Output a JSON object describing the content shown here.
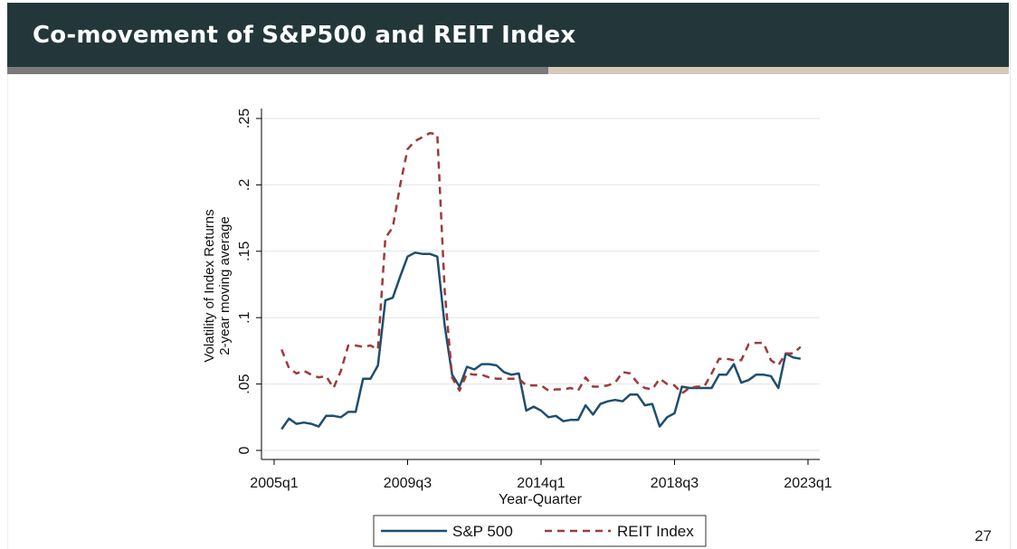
{
  "slide": {
    "title": "Co-movement of S&P500 and REIT Index",
    "page_number": "27",
    "progress_fraction": 0.54
  },
  "colors": {
    "title_bar": "#23373b",
    "progress_fill": "#7a7a7a",
    "progress_track": "#d6c9b5",
    "sp500": "#1f4e6e",
    "reit": "#9e3a3a",
    "grid": "#e4e4e4"
  },
  "chart_data": {
    "type": "line",
    "xlabel": "Year-Quarter",
    "ylabel_line1": "Volatility of Index Returns",
    "ylabel_line2": "2-year moving average",
    "xlim": [
      "2005q1",
      "2023q1"
    ],
    "ylim": [
      0,
      0.25
    ],
    "x_ticks": [
      "2005q1",
      "2009q3",
      "2014q1",
      "2018q3",
      "2023q1"
    ],
    "y_ticks": [
      {
        "value": 0,
        "label": "0"
      },
      {
        "value": 0.05,
        "label": ".05"
      },
      {
        "value": 0.1,
        "label": ".1"
      },
      {
        "value": 0.15,
        "label": ".15"
      },
      {
        "value": 0.2,
        "label": ".2"
      },
      {
        "value": 0.25,
        "label": ".25"
      }
    ],
    "grid": true,
    "legend": {
      "placement": "bottom",
      "entries": [
        "S&P 500",
        "REIT Index"
      ]
    },
    "x": [
      "2005q2",
      "2005q3",
      "2005q4",
      "2006q1",
      "2006q2",
      "2006q3",
      "2006q4",
      "2007q1",
      "2007q2",
      "2007q3",
      "2007q4",
      "2008q1",
      "2008q2",
      "2008q3",
      "2008q4",
      "2009q1",
      "2009q2",
      "2009q3",
      "2009q4",
      "2010q1",
      "2010q2",
      "2010q3",
      "2010q4",
      "2011q1",
      "2011q2",
      "2011q3",
      "2011q4",
      "2012q1",
      "2012q2",
      "2012q3",
      "2012q4",
      "2013q1",
      "2013q2",
      "2013q3",
      "2013q4",
      "2014q1",
      "2014q2",
      "2014q3",
      "2014q4",
      "2015q1",
      "2015q2",
      "2015q3",
      "2015q4",
      "2016q1",
      "2016q2",
      "2016q3",
      "2016q4",
      "2017q1",
      "2017q2",
      "2017q3",
      "2017q4",
      "2018q1",
      "2018q2",
      "2018q3",
      "2018q4",
      "2019q1",
      "2019q2",
      "2019q3",
      "2019q4",
      "2020q1",
      "2020q2",
      "2020q3",
      "2020q4",
      "2021q1",
      "2021q2",
      "2021q3",
      "2021q4",
      "2022q1",
      "2022q2",
      "2022q3",
      "2022q4"
    ],
    "series": [
      {
        "name": "S&P 500",
        "style": "solid",
        "values": [
          0.016,
          0.024,
          0.02,
          0.021,
          0.02,
          0.018,
          0.026,
          0.026,
          0.025,
          0.029,
          0.029,
          0.054,
          0.054,
          0.064,
          0.113,
          0.115,
          0.131,
          0.146,
          0.149,
          0.148,
          0.148,
          0.146,
          0.094,
          0.057,
          0.048,
          0.063,
          0.061,
          0.065,
          0.065,
          0.064,
          0.059,
          0.057,
          0.058,
          0.03,
          0.033,
          0.03,
          0.025,
          0.026,
          0.022,
          0.023,
          0.023,
          0.034,
          0.027,
          0.035,
          0.037,
          0.038,
          0.037,
          0.042,
          0.042,
          0.034,
          0.035,
          0.018,
          0.025,
          0.028,
          0.048,
          0.047,
          0.047,
          0.047,
          0.047,
          0.057,
          0.057,
          0.065,
          0.051,
          0.053,
          0.057,
          0.057,
          0.056,
          0.047,
          0.073,
          0.07,
          0.069
        ]
      },
      {
        "name": "REIT Index",
        "style": "dash",
        "values": [
          0.076,
          0.062,
          0.058,
          0.06,
          0.057,
          0.055,
          0.056,
          0.047,
          0.06,
          0.079,
          0.079,
          0.078,
          0.079,
          0.076,
          0.16,
          0.168,
          0.2,
          0.227,
          0.233,
          0.236,
          0.239,
          0.238,
          0.12,
          0.055,
          0.045,
          0.058,
          0.057,
          0.057,
          0.055,
          0.054,
          0.054,
          0.054,
          0.054,
          0.049,
          0.049,
          0.049,
          0.045,
          0.046,
          0.046,
          0.047,
          0.045,
          0.055,
          0.048,
          0.048,
          0.049,
          0.051,
          0.059,
          0.058,
          0.051,
          0.047,
          0.046,
          0.054,
          0.05,
          0.049,
          0.043,
          0.047,
          0.048,
          0.048,
          0.058,
          0.069,
          0.069,
          0.068,
          0.068,
          0.08,
          0.081,
          0.081,
          0.068,
          0.064,
          0.073,
          0.073,
          0.078
        ]
      }
    ]
  }
}
